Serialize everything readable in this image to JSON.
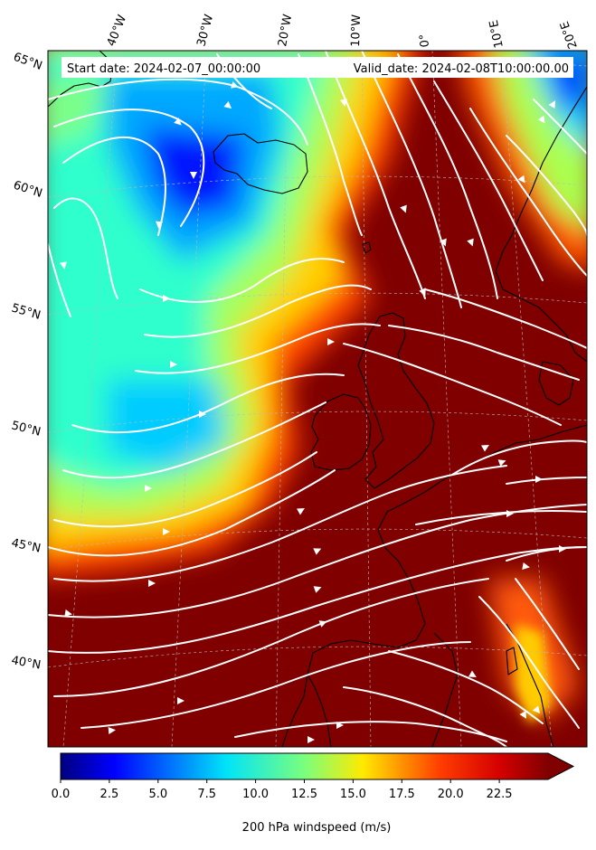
{
  "map": {
    "field": "200 hPa windspeed",
    "header": {
      "start_date": "Start date: 2024-02-07_00:00:00",
      "valid_date": "Valid_date: 2024-02-08T10:00:00.00"
    },
    "lon_labels": [
      "40°W",
      "30°W",
      "20°W",
      "10°W",
      "0°",
      "10°E",
      "20°E"
    ],
    "lat_labels": [
      "65°N",
      "60°N",
      "55°N",
      "50°N",
      "45°N",
      "40°N"
    ],
    "extent": {
      "lon_min": -48,
      "lon_max": 22,
      "lat_min": 37,
      "lat_max": 66
    }
  },
  "colorbar": {
    "label": "200 hPa windspeed (m/s)",
    "ticks": [
      "0.0",
      "2.5",
      "5.0",
      "7.5",
      "10.0",
      "12.5",
      "15.0",
      "17.5",
      "20.0",
      "22.5"
    ],
    "min": 0,
    "max": 25,
    "extend": "max",
    "colormap": "jet",
    "max_color": "#800000"
  },
  "colors": {
    "land_outline": "#000000",
    "streamline": "#ffffff",
    "gridline": "#bbbbbb"
  }
}
